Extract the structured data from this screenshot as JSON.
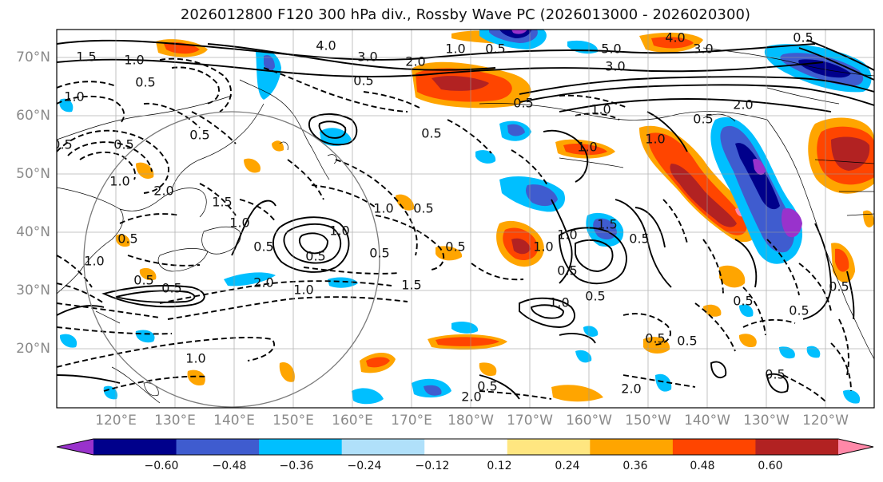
{
  "title": "2026012800 F120 300 hPa div., Rossby Wave PC (2026013000 - 2026020300)",
  "map": {
    "projection": "PlateCarree",
    "lon_range_deg": [
      107,
      245
    ],
    "lat_range_deg": [
      10,
      75
    ],
    "lon_labels": [
      "120°E",
      "130°E",
      "140°E",
      "150°E",
      "160°E",
      "170°E",
      "180°W",
      "170°W",
      "160°W",
      "150°W",
      "140°W",
      "130°W",
      "120°W"
    ],
    "lat_labels": [
      "70°N",
      "60°N",
      "50°N",
      "40°N",
      "30°N",
      "20°N"
    ],
    "contour_labels": [
      "1.5",
      "1.0",
      "0.5",
      "4.0",
      "3.0",
      "2.0",
      "1.0",
      "0.5",
      "5.0",
      "3.0",
      "4.0",
      "0.5",
      "1.0",
      "0.5",
      "3.0",
      "2.0",
      "1.0",
      "0.5",
      "0.5",
      "1.0",
      "1.0",
      "1.5",
      "2.0",
      "1.0",
      "0.5",
      "0.5",
      "1.0",
      "2.0",
      "0.5",
      "0.5",
      "1.0",
      "1.5",
      "0.5",
      "1.0",
      "0.5",
      "0.5",
      "1.0",
      "0.5",
      "0.5",
      "1.0",
      "1.5",
      "0.5",
      "0.5",
      "0.5",
      "0.5",
      "0.5",
      "0.5",
      "0.5",
      "1.0",
      "1.0",
      "0.5",
      "2.0",
      "1.0",
      "2.0",
      "0.5",
      "0.5",
      "1.0",
      "0.5",
      "0.5",
      "0.5"
    ]
  },
  "colorbar": {
    "ticks": [
      "−0.60",
      "−0.48",
      "−0.36",
      "−0.24",
      "−0.12",
      "0.12",
      "0.24",
      "0.36",
      "0.48",
      "0.60"
    ],
    "bins": [
      {
        "color": "#9932cc"
      },
      {
        "color": "#00008b"
      },
      {
        "color": "#3f5ccf"
      },
      {
        "color": "#00bfff"
      },
      {
        "color": "#b0e0fa"
      },
      {
        "color": "#ffffff"
      },
      {
        "color": "#ffe680"
      },
      {
        "color": "#ffa500"
      },
      {
        "color": "#ff4500"
      },
      {
        "color": "#b22222"
      },
      {
        "color": "#ff88a8"
      }
    ]
  }
}
